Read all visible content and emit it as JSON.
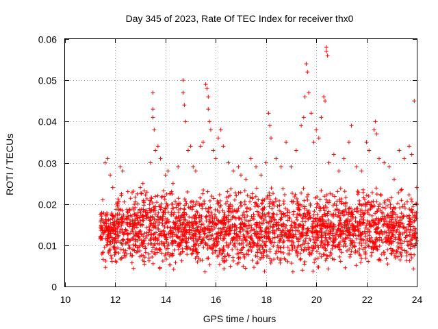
{
  "chart_data": {
    "type": "scatter",
    "title": "Day 345 of 2023, Rate Of TEC Index for receiver thx0",
    "xlabel": "GPS time / hours",
    "ylabel": "ROTI / TECUs",
    "xlim": [
      10,
      24
    ],
    "ylim": [
      0,
      0.06
    ],
    "x_ticks": [
      10,
      12,
      14,
      16,
      18,
      20,
      22,
      24
    ],
    "x_tick_labels": [
      "10",
      "12",
      "14",
      "16",
      "18",
      "20",
      "22",
      "24"
    ],
    "y_ticks": [
      0,
      0.01,
      0.02,
      0.03,
      0.04,
      0.05,
      0.06
    ],
    "y_tick_labels": [
      "0",
      "0.01",
      "0.02",
      "0.03",
      "0.04",
      "0.05",
      "0.06"
    ],
    "grid": true,
    "marker": "+",
    "color": "#ff0000",
    "series": [
      {
        "name": "ROTI",
        "points": [
          [
            11.4,
            0.012
          ],
          [
            11.5,
            0.021
          ],
          [
            11.6,
            0.03
          ],
          [
            11.7,
            0.031
          ],
          [
            11.8,
            0.027
          ],
          [
            11.9,
            0.024
          ],
          [
            12.0,
            0.014
          ],
          [
            12.1,
            0.02
          ],
          [
            12.2,
            0.029
          ],
          [
            12.3,
            0.028
          ],
          [
            12.5,
            0.023
          ],
          [
            12.7,
            0.019
          ],
          [
            12.9,
            0.02
          ],
          [
            13.0,
            0.024
          ],
          [
            13.1,
            0.025
          ],
          [
            13.2,
            0.018
          ],
          [
            13.4,
            0.03
          ],
          [
            13.5,
            0.047
          ],
          [
            13.5,
            0.043
          ],
          [
            13.5,
            0.041
          ],
          [
            13.55,
            0.038
          ],
          [
            13.6,
            0.033
          ],
          [
            13.7,
            0.034
          ],
          [
            13.8,
            0.031
          ],
          [
            14.0,
            0.027
          ],
          [
            14.1,
            0.028
          ],
          [
            14.3,
            0.025
          ],
          [
            14.5,
            0.029
          ],
          [
            14.7,
            0.05
          ],
          [
            14.7,
            0.047
          ],
          [
            14.75,
            0.044
          ],
          [
            14.8,
            0.04
          ],
          [
            14.9,
            0.033
          ],
          [
            15.0,
            0.034
          ],
          [
            15.1,
            0.029
          ],
          [
            15.2,
            0.028
          ],
          [
            15.4,
            0.034
          ],
          [
            15.5,
            0.035
          ],
          [
            15.6,
            0.049
          ],
          [
            15.65,
            0.048
          ],
          [
            15.7,
            0.046
          ],
          [
            15.7,
            0.043
          ],
          [
            15.75,
            0.04
          ],
          [
            15.8,
            0.038
          ],
          [
            15.9,
            0.033
          ],
          [
            16.0,
            0.031
          ],
          [
            16.1,
            0.036
          ],
          [
            16.2,
            0.038
          ],
          [
            16.3,
            0.034
          ],
          [
            16.5,
            0.03
          ],
          [
            16.7,
            0.028
          ],
          [
            16.9,
            0.029
          ],
          [
            17.0,
            0.027
          ],
          [
            17.2,
            0.026
          ],
          [
            17.4,
            0.031
          ],
          [
            17.6,
            0.029
          ],
          [
            17.8,
            0.027
          ],
          [
            18.0,
            0.03
          ],
          [
            18.1,
            0.042
          ],
          [
            18.15,
            0.039
          ],
          [
            18.2,
            0.036
          ],
          [
            18.4,
            0.031
          ],
          [
            18.6,
            0.029
          ],
          [
            18.8,
            0.035
          ],
          [
            19.0,
            0.029
          ],
          [
            19.2,
            0.033
          ],
          [
            19.4,
            0.039
          ],
          [
            19.5,
            0.041
          ],
          [
            19.55,
            0.046
          ],
          [
            19.6,
            0.054
          ],
          [
            19.65,
            0.052
          ],
          [
            19.7,
            0.047
          ],
          [
            19.8,
            0.042
          ],
          [
            19.9,
            0.035
          ],
          [
            20.0,
            0.038
          ],
          [
            20.1,
            0.036
          ],
          [
            20.2,
            0.041
          ],
          [
            20.3,
            0.046
          ],
          [
            20.35,
            0.045
          ],
          [
            20.4,
            0.058
          ],
          [
            20.4,
            0.057
          ],
          [
            20.45,
            0.056
          ],
          [
            20.5,
            0.03
          ],
          [
            20.7,
            0.032
          ],
          [
            20.9,
            0.028
          ],
          [
            21.1,
            0.031
          ],
          [
            21.3,
            0.035
          ],
          [
            21.4,
            0.039
          ],
          [
            21.6,
            0.029
          ],
          [
            21.8,
            0.028
          ],
          [
            22.0,
            0.035
          ],
          [
            22.1,
            0.033
          ],
          [
            22.3,
            0.038
          ],
          [
            22.35,
            0.04
          ],
          [
            22.4,
            0.037
          ],
          [
            22.5,
            0.031
          ],
          [
            22.7,
            0.03
          ],
          [
            22.9,
            0.029
          ],
          [
            23.1,
            0.026
          ],
          [
            23.3,
            0.033
          ],
          [
            23.5,
            0.031
          ],
          [
            23.7,
            0.034
          ],
          [
            23.8,
            0.032
          ],
          [
            23.9,
            0.045
          ],
          [
            24.0,
            0.024
          ]
        ],
        "dense_band": {
          "description": "many points forming a dense red band",
          "x_range": [
            11.4,
            24.0
          ],
          "y_range": [
            0.003,
            0.024
          ],
          "count": 2600
        }
      }
    ]
  }
}
